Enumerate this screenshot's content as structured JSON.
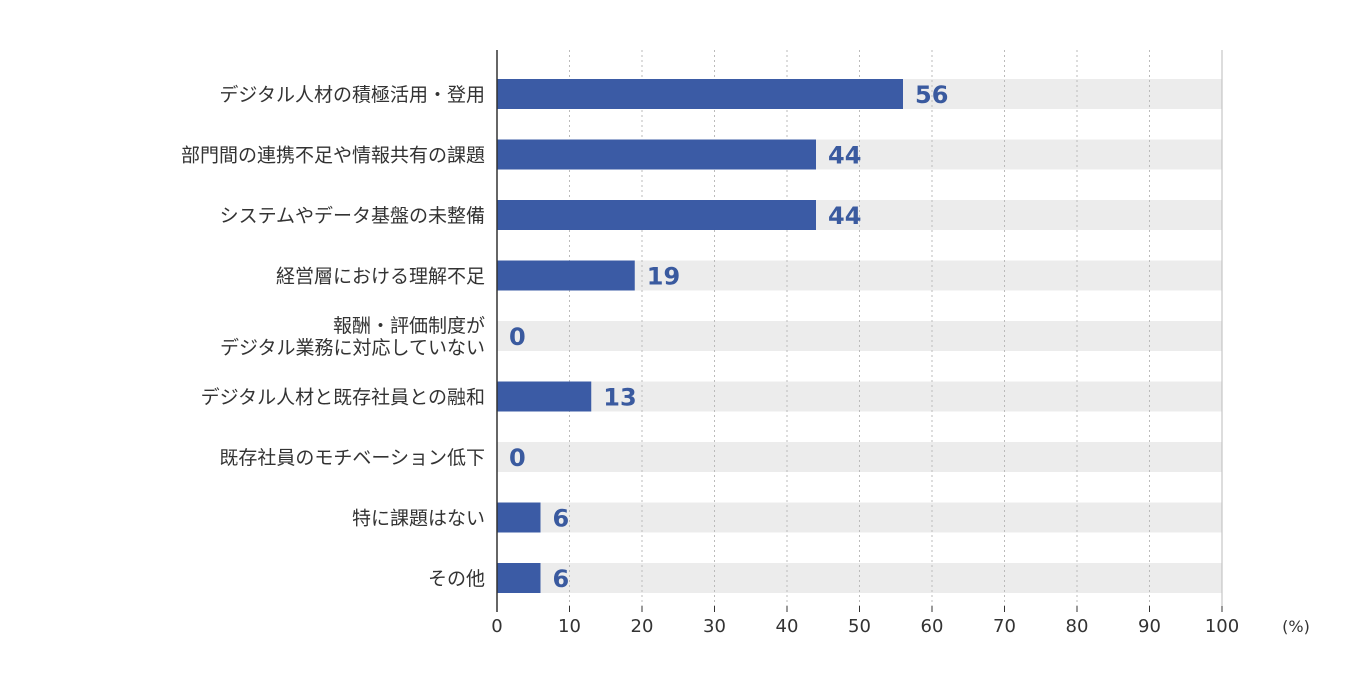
{
  "chart_data": {
    "type": "bar",
    "orientation": "horizontal",
    "categories": [
      [
        "デジタル人材の積極活用・登用"
      ],
      [
        "部門間の連携不足や情報共有の課題"
      ],
      [
        "システムやデータ基盤の未整備"
      ],
      [
        "経営層における理解不足"
      ],
      [
        "報酬・評価制度が",
        "デジタル業務に対応していない"
      ],
      [
        "デジタル人材と既存社員との融和"
      ],
      [
        "既存社員のモチベーション低下"
      ],
      [
        "特に課題はない"
      ],
      [
        "その他"
      ]
    ],
    "values": [
      56,
      44,
      44,
      19,
      0,
      13,
      0,
      6,
      6
    ],
    "value_labels": [
      "56",
      "44",
      "44",
      "19",
      "0",
      "13",
      "0",
      "6",
      "6"
    ],
    "xlim": [
      0,
      100
    ],
    "xticks": [
      "0",
      "10",
      "20",
      "30",
      "40",
      "50",
      "60",
      "70",
      "80",
      "90",
      "100"
    ],
    "xunit": "(%)",
    "colors": {
      "bar": "#3b5ba5",
      "track": "#ececec",
      "value_text": "#3a5a9f",
      "axis": "#333333",
      "grid": "#bbbbbb"
    },
    "grid": true
  }
}
